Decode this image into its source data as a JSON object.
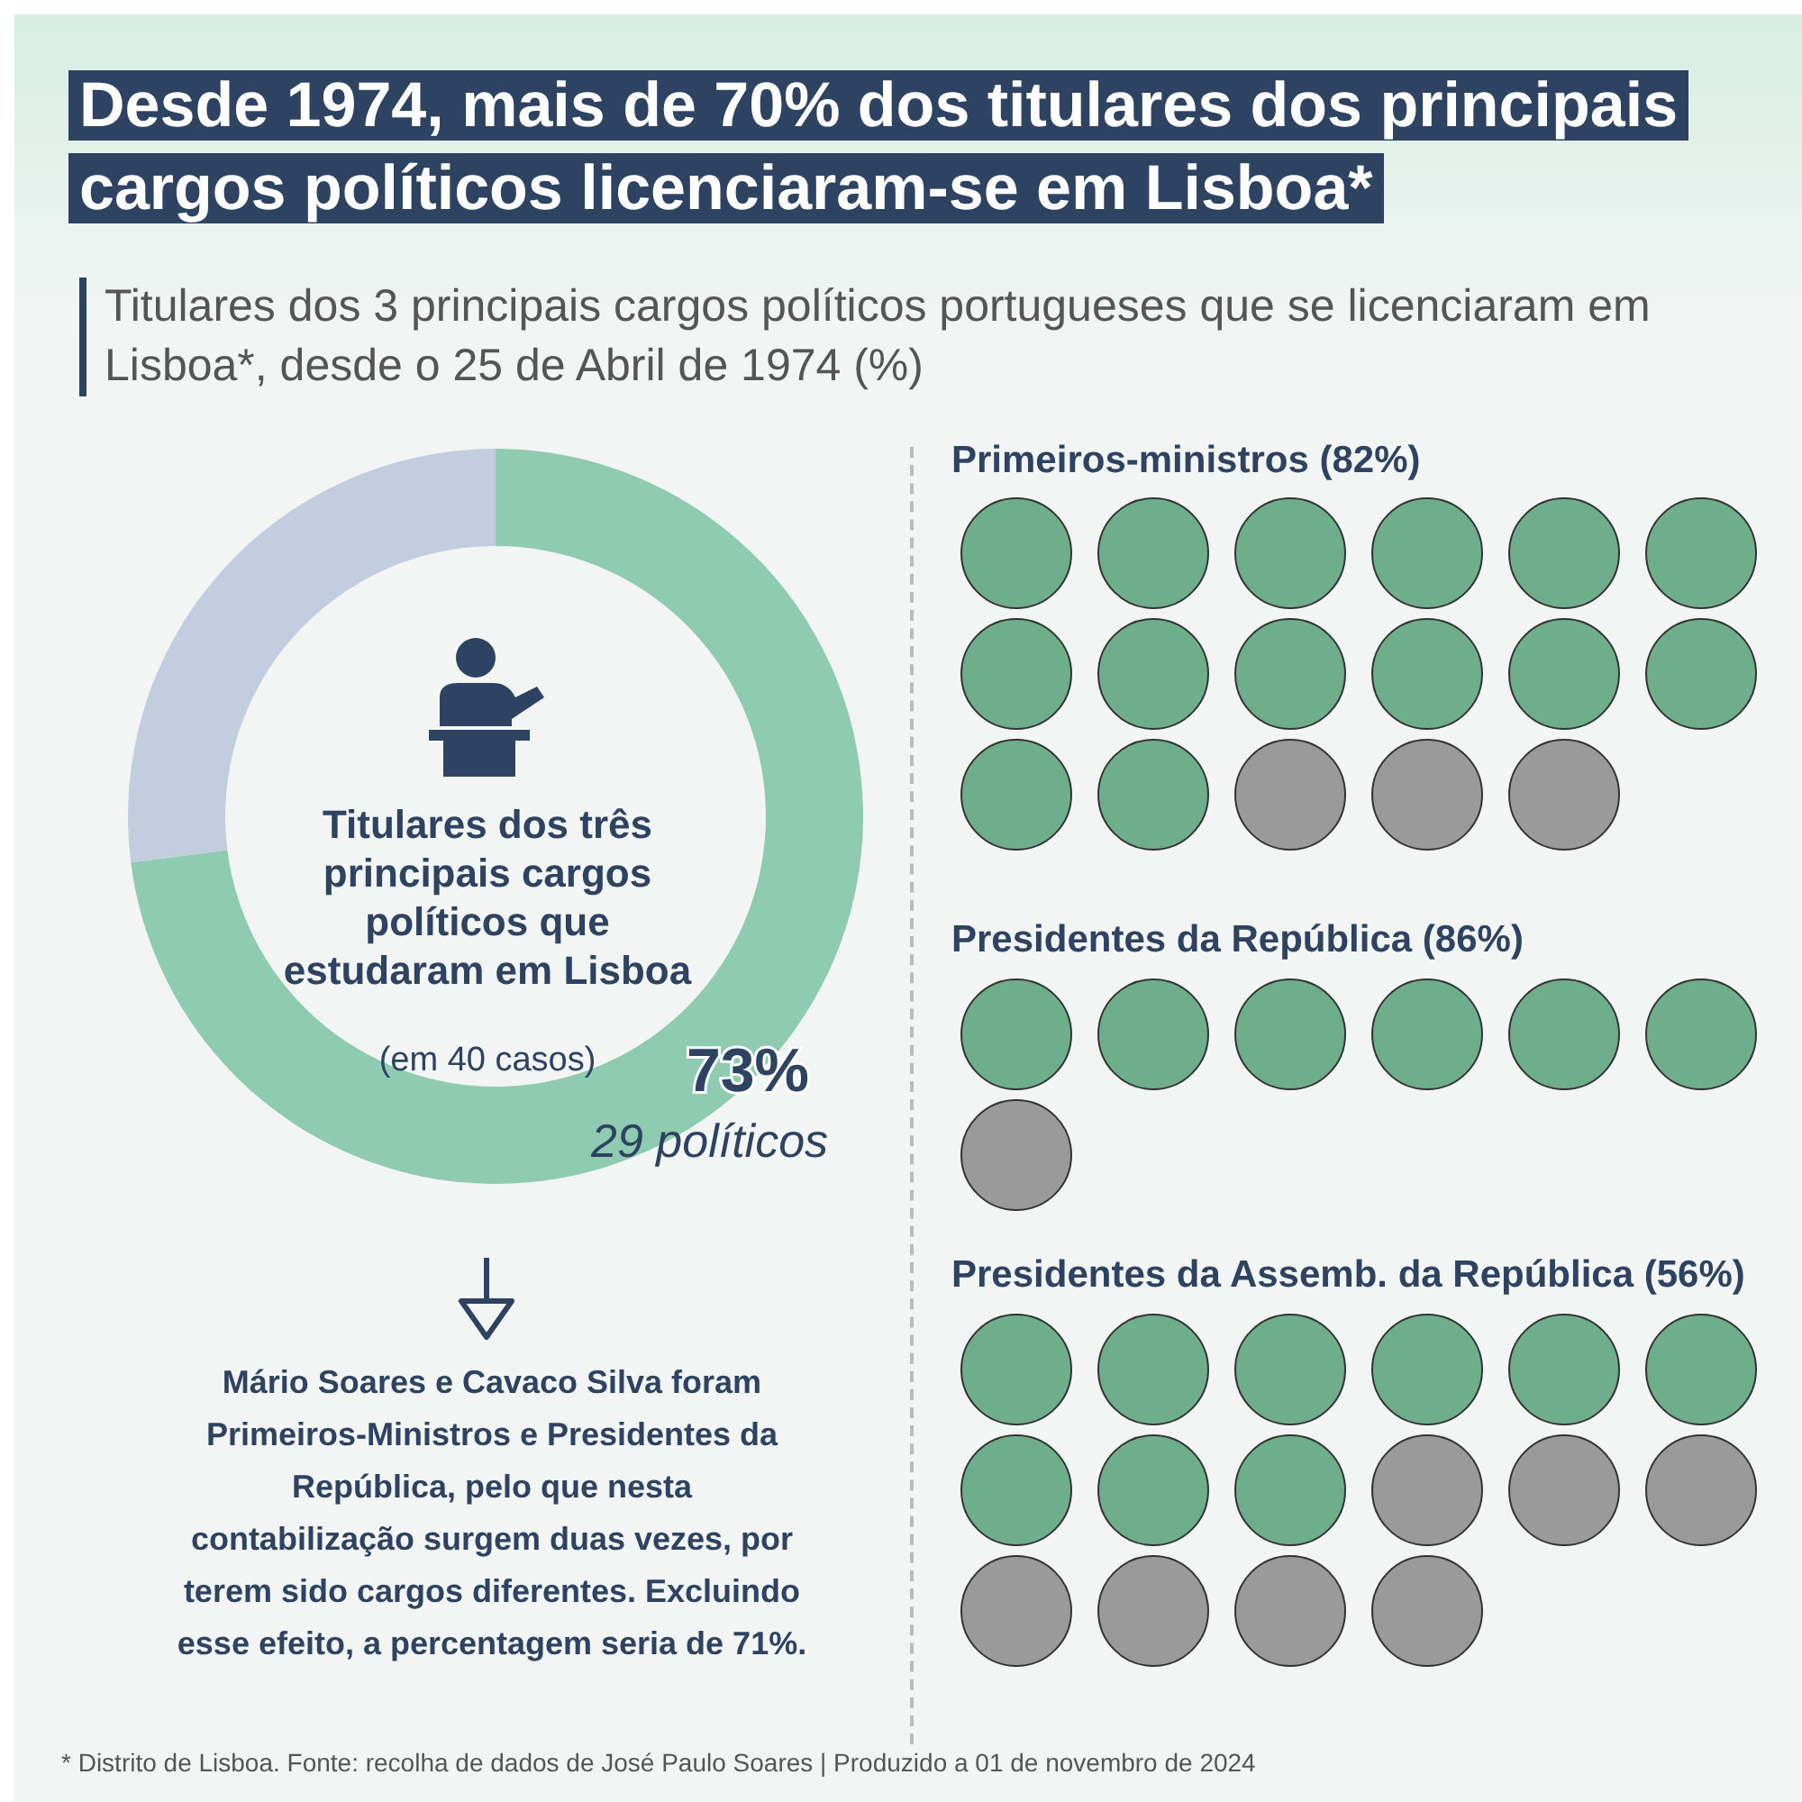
{
  "chart_data": {
    "type": "donut",
    "title": "Desde 1974, mais de 70% dos titulares dos principais cargos políticos licenciaram-se em Lisboa*",
    "subtitle": "Titulares dos 3 principais cargos políticos portugueses que se licenciaram em Lisboa*, desde o 25 de Abril de 1974 (%)",
    "categories": [
      null,
      null
    ],
    "values": [
      73,
      27
    ],
    "colors": [
      "#8fcbb1",
      "#c3cde0"
    ],
    "value_labels": [
      "73%",
      null
    ],
    "annotations": [
      "Titulares dos três principais cargos políticos que estudaram em Lisboa",
      "(em 40 casos)",
      "29 políticos",
      "Primeiros-ministros (82%)",
      "Presidentes da República (86%)",
      "Presidentes da Assemb. da República (56%)",
      "Mário Soares e Cavaco Silva foram Primeiros-Ministros e Presidentes da República, pelo que nesta contabilização surgem duas vezes, por terem sido cargos diferentes. Excluindo esse efeito, a percentagem seria de 71%.",
      "* Distrito de Lisboa. Fonte: recolha de dados de José Paulo Soares | Produzido a 01 de novembro de 2024"
    ]
  }
}
